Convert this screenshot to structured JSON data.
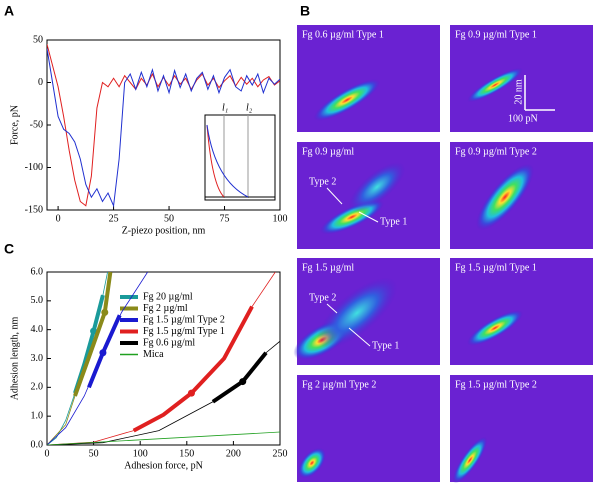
{
  "panel_labels": [
    "A",
    "B",
    "C"
  ],
  "chart_data": [
    {
      "type": "line",
      "xlabel": "Z-piezo position, nm",
      "ylabel": "Force, pN",
      "xlim": [
        -5,
        100
      ],
      "xticks": [
        0,
        25,
        50,
        75,
        100
      ],
      "ylim": [
        -150,
        50
      ],
      "yticks": [
        -150,
        -100,
        -50,
        0,
        50
      ],
      "x": [
        -5,
        -2.5,
        0,
        2.5,
        5,
        7.5,
        10,
        12.5,
        15,
        17.5,
        20,
        22.5,
        25,
        27.5,
        30,
        32.5,
        35,
        37.5,
        40,
        42.5,
        45,
        47.5,
        50,
        52.5,
        55,
        57.5,
        60,
        62.5,
        65,
        67.5,
        70,
        72.5,
        75,
        77.5,
        80,
        82.5,
        85,
        87.5,
        90,
        92.5,
        95,
        97.5,
        100
      ],
      "series": [
        {
          "color": "#e02020",
          "values": [
            45,
            20,
            -5,
            -40,
            -80,
            -115,
            -140,
            -145,
            -110,
            -30,
            0,
            -5,
            5,
            -5,
            8,
            0,
            -8,
            5,
            -3,
            10,
            -5,
            6,
            -4,
            8,
            -2,
            5,
            -8,
            3,
            10,
            -3,
            5,
            -6,
            2,
            8,
            -4,
            6,
            -2,
            5,
            -5,
            3,
            7,
            -3,
            2
          ]
        },
        {
          "color": "#2030d0",
          "values": [
            40,
            0,
            -40,
            -55,
            -60,
            -70,
            -90,
            -120,
            -135,
            -125,
            -140,
            -130,
            -145,
            -90,
            0,
            10,
            -8,
            12,
            -5,
            15,
            -10,
            8,
            -12,
            14,
            -6,
            10,
            -10,
            5,
            12,
            -8,
            8,
            -12,
            6,
            15,
            -5,
            -10,
            8,
            -3,
            10,
            -12,
            5,
            -2,
            4
          ]
        }
      ],
      "inset_labels": [
        "l₁",
        "l₂"
      ]
    },
    {
      "type": "line",
      "xlabel": "Adhesion force, pN",
      "ylabel": "Adhesion length, nm",
      "xlim": [
        0,
        250
      ],
      "xticks": [
        0,
        50,
        100,
        150,
        200,
        250
      ],
      "ylim": [
        0,
        6
      ],
      "yticks": [
        {
          "value": 0,
          "label": "0.0"
        },
        {
          "value": 1,
          "label": "1.0"
        },
        {
          "value": 2,
          "label": "2.0"
        },
        {
          "value": 3,
          "label": "3.0"
        },
        {
          "value": 4,
          "label": "4.0"
        },
        {
          "value": 5,
          "label": "5.0"
        },
        {
          "value": 6,
          "label": "6.0"
        }
      ],
      "series": [
        {
          "name": "Fg 20 µg/ml",
          "color": "#1a9a9a",
          "x": [
            0,
            10,
            20,
            30,
            40,
            50,
            60,
            65
          ],
          "values": [
            0,
            0.25,
            0.85,
            1.8,
            2.8,
            3.95,
            5.2,
            6
          ],
          "segment_x": [
            30,
            40,
            50,
            60
          ],
          "segment_values": [
            1.8,
            2.8,
            3.95,
            5.2
          ],
          "point": {
            "x": 50,
            "y": 3.95
          }
        },
        {
          "name": "Fg 2 µg/ml",
          "color": "#8a8a1a",
          "x": [
            0,
            20,
            30,
            40,
            50,
            62,
            68
          ],
          "values": [
            0,
            0.7,
            1.7,
            2.6,
            3.5,
            4.6,
            6
          ],
          "segment_x": [
            30,
            40,
            50,
            62,
            68
          ],
          "segment_values": [
            1.7,
            2.6,
            3.5,
            4.6,
            6
          ],
          "point": {
            "x": 62,
            "y": 4.6
          }
        },
        {
          "name": "Fg 1.5 µg/ml Type 2",
          "color": "#1a1ad0",
          "x": [
            0,
            20,
            40,
            60,
            80,
            108
          ],
          "values": [
            0,
            0.6,
            1.7,
            3.2,
            4.6,
            6
          ],
          "segment_x": [
            45,
            60,
            78
          ],
          "segment_values": [
            2,
            3.2,
            4.5
          ],
          "point": {
            "x": 60,
            "y": 3.2
          }
        },
        {
          "name": "Fg 1.5 µg/ml Type 1",
          "color": "#e02020",
          "x": [
            0,
            50,
            93,
            125,
            155,
            190,
            220,
            245
          ],
          "values": [
            0,
            0.1,
            0.5,
            1.05,
            1.8,
            3,
            4.8,
            6
          ],
          "segment_x": [
            93,
            125,
            155,
            190,
            220
          ],
          "segment_values": [
            0.5,
            1.05,
            1.8,
            3,
            4.8
          ],
          "point": {
            "x": 155,
            "y": 1.8
          }
        },
        {
          "name": "Fg 0.6 µg/ml",
          "color": "#000000",
          "x": [
            0,
            60,
            120,
            178,
            210,
            235,
            250
          ],
          "values": [
            0,
            0.08,
            0.5,
            1.5,
            2.2,
            3.2,
            3.6
          ],
          "segment_x": [
            178,
            210,
            235
          ],
          "segment_values": [
            1.5,
            2.2,
            3.2
          ],
          "point": {
            "x": 210,
            "y": 2.2
          }
        },
        {
          "name": "Mica",
          "color": "#20a020",
          "x": [
            0,
            250
          ],
          "values": [
            0,
            0.45
          ]
        }
      ]
    }
  ],
  "images": [
    {
      "label": "Fg 0.6 µg/ml Type 1"
    },
    {
      "label": "Fg 0.9 µg/ml Type 1"
    },
    {
      "label": "Fg 0.9 µg/ml",
      "annotations": [
        "Type 2",
        "Type 1"
      ]
    },
    {
      "label": "Fg 0.9 µg/ml Type 2"
    },
    {
      "label": "Fg 1.5 µg/ml",
      "annotations": [
        "Type 2",
        "Type 1"
      ]
    },
    {
      "label": "Fg 1.5 µg/ml Type 1"
    },
    {
      "label": "Fg 2 µg/ml Type 2"
    },
    {
      "label": "Fg 1.5 µg/ml Type 2"
    }
  ],
  "scale_bar": {
    "vertical": "20 nm",
    "horizontal": "100 pN"
  }
}
